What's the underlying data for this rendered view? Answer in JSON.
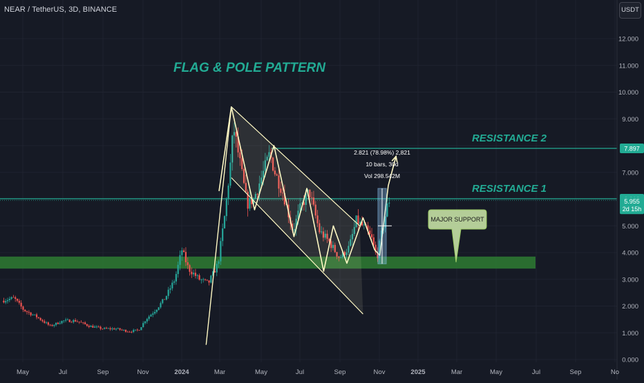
{
  "header": {
    "symbol_line": "NEAR / TetherUS, 3D, BINANCE",
    "currency_label": "USDT"
  },
  "colors": {
    "background": "#161a25",
    "grid": "#1f2330",
    "up": "#26a69a",
    "down": "#ef5350",
    "accent_teal": "#22ab94",
    "support_zone": "#2e7d32",
    "drawing_lines": "#fff9c4"
  },
  "chart_data": {
    "type": "candlestick",
    "title": "",
    "annotation_title": "FLAG & POLE PATTERN",
    "x_ticks": [
      "May",
      "Jul",
      "Sep",
      "Nov",
      "2024",
      "Mar",
      "May",
      "Jul",
      "Sep",
      "Nov",
      "2025",
      "Mar",
      "May",
      "Jul",
      "Sep",
      "No"
    ],
    "y_ticks": [
      12.0,
      11.0,
      10.0,
      9.0,
      8.0,
      7.0,
      6.0,
      5.0,
      4.0,
      3.0,
      2.0,
      1.0,
      0.0
    ],
    "y_tick_labels": [
      "12.000",
      "11.000",
      "10.000",
      "9.000",
      "8.000",
      "7.000",
      "6.000",
      "5.000",
      "4.000",
      "3.000",
      "2.000",
      "1.000",
      "0.000"
    ],
    "ylim": [
      0,
      13.2
    ],
    "close_path": [
      [
        "2023-04-01",
        2.2
      ],
      [
        "2023-04-20",
        2.3
      ],
      [
        "2023-05-05",
        1.85
      ],
      [
        "2023-05-25",
        1.6
      ],
      [
        "2023-06-15",
        1.25
      ],
      [
        "2023-07-05",
        1.45
      ],
      [
        "2023-07-25",
        1.45
      ],
      [
        "2023-08-15",
        1.25
      ],
      [
        "2023-09-05",
        1.15
      ],
      [
        "2023-09-25",
        1.15
      ],
      [
        "2023-10-15",
        1.05
      ],
      [
        "2023-10-30",
        1.1
      ],
      [
        "2023-11-10",
        1.5
      ],
      [
        "2023-11-25",
        1.85
      ],
      [
        "2023-12-10",
        2.3
      ],
      [
        "2023-12-25",
        3.0
      ],
      [
        "2024-01-05",
        4.1
      ],
      [
        "2024-01-15",
        3.4
      ],
      [
        "2024-02-01",
        3.0
      ],
      [
        "2024-02-15",
        2.85
      ],
      [
        "2024-03-01",
        3.6
      ],
      [
        "2024-03-12",
        5.5
      ],
      [
        "2024-03-20",
        7.3
      ],
      [
        "2024-03-25",
        8.7
      ],
      [
        "2024-04-05",
        7.2
      ],
      [
        "2024-04-15",
        5.8
      ],
      [
        "2024-04-25",
        6.0
      ],
      [
        "2024-05-10",
        7.0
      ],
      [
        "2024-05-20",
        7.7
      ],
      [
        "2024-05-28",
        7.0
      ],
      [
        "2024-06-10",
        6.2
      ],
      [
        "2024-06-25",
        4.8
      ],
      [
        "2024-07-05",
        5.6
      ],
      [
        "2024-07-20",
        6.3
      ],
      [
        "2024-08-05",
        4.8
      ],
      [
        "2024-08-20",
        4.4
      ],
      [
        "2024-09-05",
        3.8
      ],
      [
        "2024-09-20",
        4.2
      ],
      [
        "2024-10-01",
        5.2
      ],
      [
        "2024-10-15",
        4.9
      ],
      [
        "2024-10-25",
        4.5
      ],
      [
        "2024-11-02",
        3.8
      ],
      [
        "2024-11-10",
        4.8
      ],
      [
        "2024-11-20",
        5.95
      ]
    ],
    "last_price": 5.955,
    "last_price_countdown": "2d 15h",
    "levels": [
      {
        "name": "RESISTANCE 2",
        "price": 7.897,
        "price_label": "7.897"
      },
      {
        "name": "RESISTANCE 1",
        "price": 6.013,
        "price_label": "6.013"
      }
    ],
    "support_zone": {
      "label": "MAJOR SUPPORT",
      "from": 3.4,
      "to": 3.85
    },
    "measure": {
      "line1": "2.821 (78.98%) 2,821",
      "line2": "10 bars, 30d",
      "line3": "Vol 298.542M",
      "from_price": 3.58,
      "to_price": 6.4
    },
    "pattern_points": {
      "pole": [
        [
          "2024-02-10",
          0.55
        ],
        [
          "2024-03-20",
          9.45
        ]
      ],
      "flag_upper": [
        [
          "2024-03-20",
          9.45
        ],
        [
          "2024-10-05",
          5.0
        ]
      ],
      "flag_lower": [
        [
          "2024-03-20",
          6.8
        ],
        [
          "2024-10-10",
          1.7
        ]
      ],
      "zigzag": [
        [
          "2024-03-01",
          6.3
        ],
        [
          "2024-03-20",
          9.45
        ],
        [
          "2024-04-25",
          5.6
        ],
        [
          "2024-05-25",
          8.0
        ],
        [
          "2024-06-25",
          4.6
        ],
        [
          "2024-07-15",
          6.4
        ],
        [
          "2024-08-10",
          3.3
        ],
        [
          "2024-08-25",
          5.0
        ],
        [
          "2024-09-15",
          3.6
        ],
        [
          "2024-10-10",
          5.3
        ],
        [
          "2024-10-28",
          4.1
        ],
        [
          "2024-11-05",
          3.9
        ],
        [
          "2024-11-18",
          6.5
        ],
        [
          "2024-11-30",
          7.6
        ]
      ]
    }
  }
}
